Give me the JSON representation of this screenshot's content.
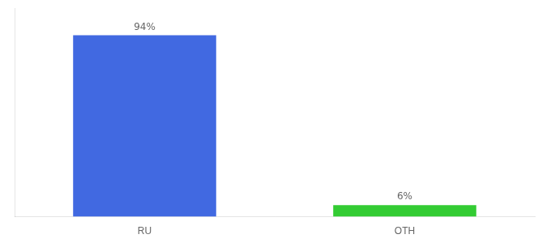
{
  "chart_data": {
    "type": "bar",
    "categories": [
      "RU",
      "OTH"
    ],
    "values": [
      94,
      6
    ],
    "value_labels": [
      "94%",
      "6%"
    ],
    "colors": [
      "#4169e1",
      "#33cc33"
    ],
    "ylim": [
      0,
      108
    ],
    "data_labels": true,
    "tick_labels": "x",
    "grid": false
  }
}
